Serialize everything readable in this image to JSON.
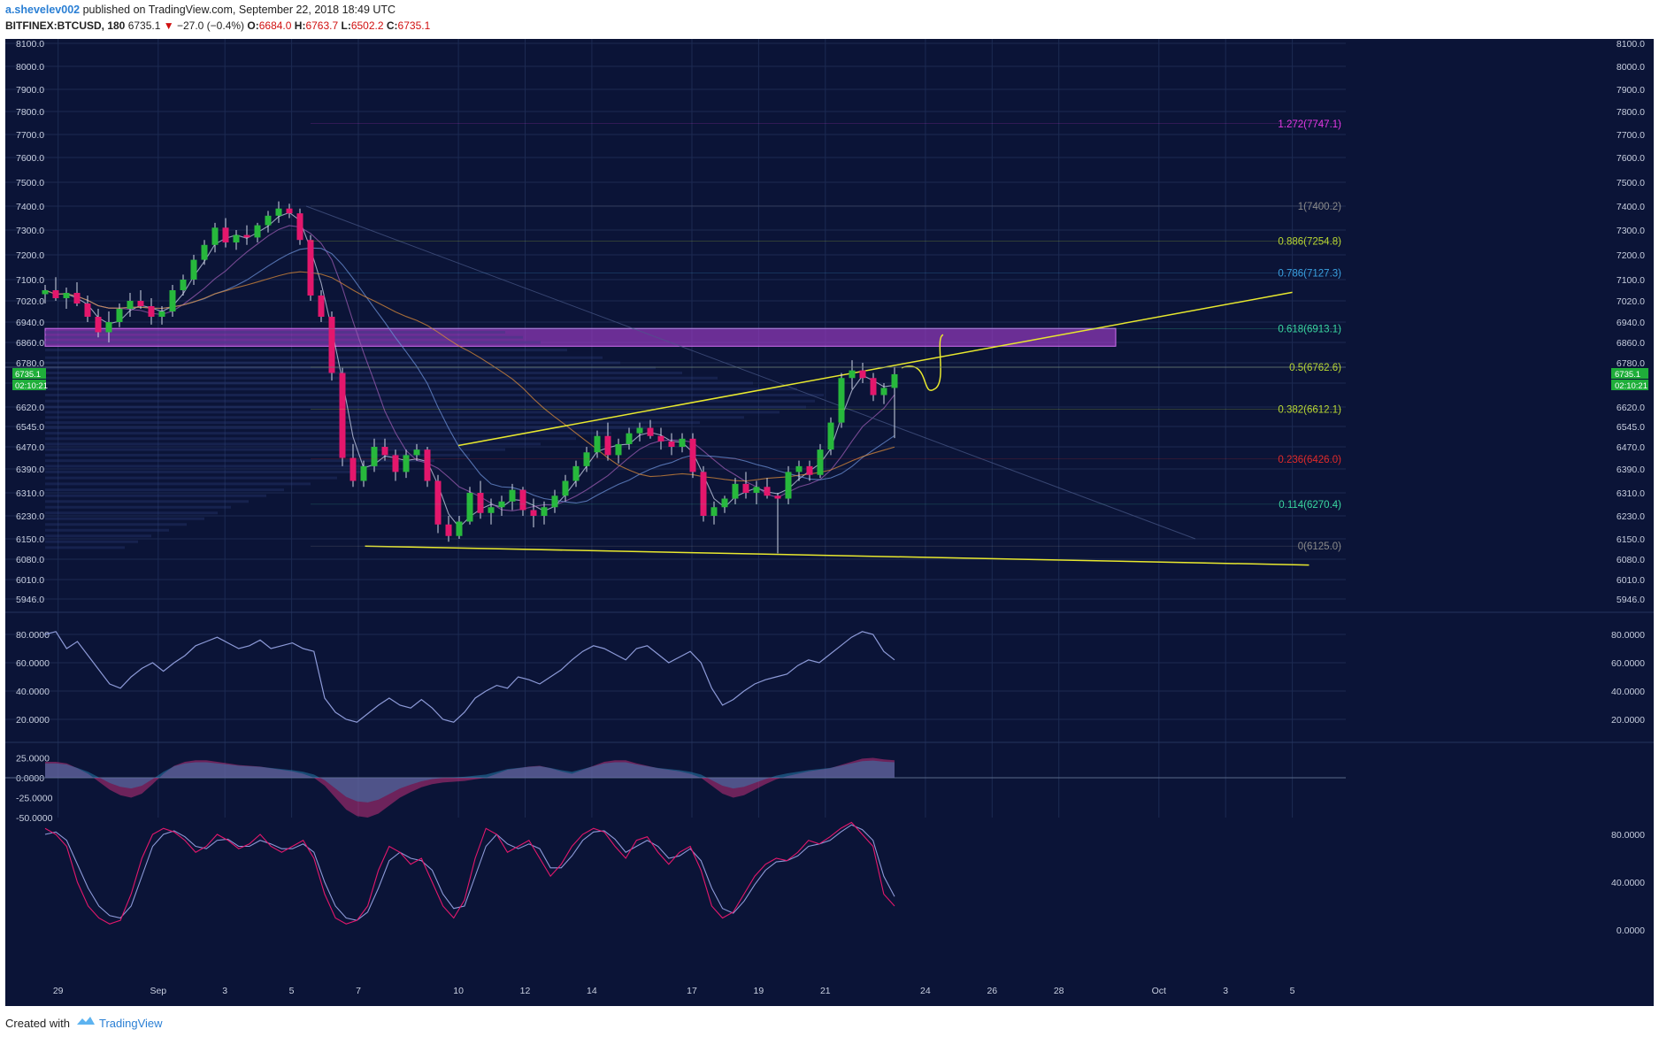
{
  "header": {
    "author": "a.shevelev002",
    "published_text": "published on TradingView.com, September 22, 2018 18:49 UTC",
    "symbol": "BITFINEX:BTCUSD, 180",
    "last": "6735.1",
    "change_arrow": "▼",
    "change": "−27.0 (−0.4%)",
    "o_label": "O:",
    "o": "6684.0",
    "h_label": "H:",
    "h": "6763.7",
    "l_label": "L:",
    "l": "6502.2",
    "c_label": "C:",
    "c": "6735.1"
  },
  "footer": {
    "created_with": "Created with",
    "brand": "TradingView"
  },
  "colors": {
    "background": "#0b1437",
    "up": "#27b83c",
    "down": "#e3176c",
    "trendline": "#e8e82e",
    "zone": "#a03cc8",
    "rsi": "#8d9ad8",
    "stoch_k": "#e3176c",
    "stoch_d": "#8d9ad8"
  },
  "chart_data": {
    "type": "candlestick",
    "price_axis": {
      "ticks": [
        "8100.0",
        "8000.0",
        "7900.0",
        "7800.0",
        "7700.0",
        "7600.0",
        "7500.0",
        "7400.0",
        "7300.0",
        "7200.0",
        "7100.0",
        "7020.0",
        "6940.0",
        "6860.0",
        "6780.0",
        "6700.0",
        "6620.0",
        "6545.0",
        "6470.0",
        "6390.0",
        "6310.0",
        "6230.0",
        "6150.0",
        "6080.0",
        "6010.0",
        "5946.0"
      ],
      "last_price_tag": "6735.1",
      "countdown_tag": "02:10:21"
    },
    "time_axis": {
      "ticks": [
        "29",
        "Sep",
        "3",
        "5",
        "7",
        "10",
        "12",
        "14",
        "17",
        "19",
        "21",
        "24",
        "26",
        "28",
        "Oct",
        "3",
        "5"
      ]
    },
    "fibonacci": [
      {
        "label": "1.272(7747.1)",
        "level": 7747.1,
        "color": "#e639e6"
      },
      {
        "label": "1(7400.2)",
        "level": 7400.2,
        "color": "#8a8a8a"
      },
      {
        "label": "0.886(7254.8)",
        "level": 7254.8,
        "color": "#b8d633"
      },
      {
        "label": "0.786(7127.3)",
        "level": 7127.3,
        "color": "#3aa0e0"
      },
      {
        "label": "0.618(6913.1)",
        "level": 6913.1,
        "color": "#3ad6a0"
      },
      {
        "label": "0.5(6762.6)",
        "level": 6762.6,
        "color": "#b8d633"
      },
      {
        "label": "0.382(6612.1)",
        "level": 6612.1,
        "color": "#b8d633"
      },
      {
        "label": "0.236(6426.0)",
        "level": 6426.0,
        "color": "#e02a2a"
      },
      {
        "label": "0.114(6270.4)",
        "level": 6270.4,
        "color": "#3ad6a0"
      },
      {
        "label": "0(6125.0)",
        "level": 6125.0,
        "color": "#8a8a8a"
      }
    ],
    "resistance_zone": {
      "from": 6845,
      "to": 6915
    },
    "candles_ohlc": [
      [
        7045,
        7080,
        7010,
        7060
      ],
      [
        7060,
        7110,
        7020,
        7030
      ],
      [
        7030,
        7070,
        6990,
        7050
      ],
      [
        7050,
        7090,
        7000,
        7010
      ],
      [
        7010,
        7040,
        6940,
        6960
      ],
      [
        6960,
        6990,
        6880,
        6900
      ],
      [
        6900,
        6980,
        6860,
        6940
      ],
      [
        6940,
        7010,
        6920,
        6990
      ],
      [
        6990,
        7050,
        6960,
        7020
      ],
      [
        7020,
        7060,
        6990,
        7000
      ],
      [
        7000,
        7030,
        6930,
        6960
      ],
      [
        6960,
        7000,
        6930,
        6980
      ],
      [
        6980,
        7080,
        6960,
        7060
      ],
      [
        7060,
        7120,
        7040,
        7100
      ],
      [
        7100,
        7200,
        7080,
        7180
      ],
      [
        7180,
        7260,
        7160,
        7240
      ],
      [
        7240,
        7330,
        7210,
        7310
      ],
      [
        7310,
        7350,
        7230,
        7250
      ],
      [
        7250,
        7300,
        7220,
        7280
      ],
      [
        7280,
        7320,
        7240,
        7270
      ],
      [
        7270,
        7330,
        7250,
        7320
      ],
      [
        7320,
        7380,
        7290,
        7360
      ],
      [
        7360,
        7420,
        7330,
        7390
      ],
      [
        7390,
        7410,
        7350,
        7370
      ],
      [
        7370,
        7390,
        7240,
        7260
      ],
      [
        7260,
        7280,
        7020,
        7040
      ],
      [
        7040,
        7060,
        6940,
        6960
      ],
      [
        6960,
        6980,
        6710,
        6740
      ],
      [
        6740,
        6760,
        6400,
        6430
      ],
      [
        6430,
        6480,
        6330,
        6350
      ],
      [
        6350,
        6420,
        6330,
        6400
      ],
      [
        6400,
        6500,
        6380,
        6470
      ],
      [
        6470,
        6500,
        6420,
        6440
      ],
      [
        6440,
        6460,
        6350,
        6380
      ],
      [
        6380,
        6460,
        6360,
        6440
      ],
      [
        6440,
        6480,
        6420,
        6460
      ],
      [
        6460,
        6470,
        6330,
        6350
      ],
      [
        6350,
        6370,
        6170,
        6200
      ],
      [
        6200,
        6230,
        6140,
        6160
      ],
      [
        6160,
        6230,
        6150,
        6210
      ],
      [
        6210,
        6330,
        6200,
        6310
      ],
      [
        6310,
        6350,
        6220,
        6240
      ],
      [
        6240,
        6290,
        6200,
        6260
      ],
      [
        6260,
        6300,
        6230,
        6280
      ],
      [
        6280,
        6340,
        6250,
        6320
      ],
      [
        6320,
        6330,
        6230,
        6250
      ],
      [
        6250,
        6290,
        6190,
        6230
      ],
      [
        6230,
        6280,
        6200,
        6260
      ],
      [
        6260,
        6320,
        6240,
        6300
      ],
      [
        6300,
        6370,
        6280,
        6350
      ],
      [
        6350,
        6420,
        6330,
        6400
      ],
      [
        6400,
        6470,
        6380,
        6450
      ],
      [
        6450,
        6530,
        6430,
        6510
      ],
      [
        6510,
        6560,
        6420,
        6440
      ],
      [
        6440,
        6500,
        6410,
        6480
      ],
      [
        6480,
        6540,
        6460,
        6520
      ],
      [
        6520,
        6560,
        6490,
        6540
      ],
      [
        6540,
        6570,
        6500,
        6510
      ],
      [
        6510,
        6540,
        6460,
        6490
      ],
      [
        6490,
        6520,
        6440,
        6470
      ],
      [
        6470,
        6520,
        6450,
        6500
      ],
      [
        6500,
        6520,
        6360,
        6380
      ],
      [
        6380,
        6400,
        6210,
        6230
      ],
      [
        6230,
        6280,
        6200,
        6260
      ],
      [
        6260,
        6300,
        6240,
        6290
      ],
      [
        6290,
        6360,
        6270,
        6340
      ],
      [
        6340,
        6380,
        6290,
        6310
      ],
      [
        6310,
        6350,
        6270,
        6330
      ],
      [
        6330,
        6360,
        6290,
        6300
      ],
      [
        6300,
        6310,
        6100,
        6290
      ],
      [
        6290,
        6400,
        6270,
        6380
      ],
      [
        6380,
        6420,
        6350,
        6400
      ],
      [
        6400,
        6420,
        6350,
        6370
      ],
      [
        6370,
        6480,
        6360,
        6460
      ],
      [
        6460,
        6580,
        6440,
        6560
      ],
      [
        6560,
        6740,
        6540,
        6720
      ],
      [
        6720,
        6790,
        6680,
        6750
      ],
      [
        6750,
        6780,
        6700,
        6720
      ],
      [
        6720,
        6740,
        6640,
        6660
      ],
      [
        6660,
        6700,
        6630,
        6684
      ],
      [
        6684,
        6764,
        6502,
        6735
      ]
    ],
    "volume_profile": [
      [
        6900,
        520
      ],
      [
        6880,
        540
      ],
      [
        6860,
        560
      ],
      [
        6830,
        590
      ],
      [
        6800,
        630
      ],
      [
        6780,
        650
      ],
      [
        6760,
        690
      ],
      [
        6740,
        720
      ],
      [
        6720,
        760
      ],
      [
        6700,
        800
      ],
      [
        6680,
        850
      ],
      [
        6660,
        880
      ],
      [
        6640,
        870
      ],
      [
        6620,
        860
      ],
      [
        6600,
        830
      ],
      [
        6580,
        790
      ],
      [
        6560,
        740
      ],
      [
        6540,
        680
      ],
      [
        6520,
        640
      ],
      [
        6500,
        600
      ],
      [
        6480,
        560
      ],
      [
        6460,
        520
      ],
      [
        6440,
        480
      ],
      [
        6420,
        440
      ],
      [
        6400,
        400
      ],
      [
        6380,
        360
      ],
      [
        6360,
        330
      ],
      [
        6340,
        300
      ],
      [
        6320,
        270
      ],
      [
        6300,
        250
      ],
      [
        6280,
        230
      ],
      [
        6260,
        210
      ],
      [
        6240,
        195
      ],
      [
        6220,
        180
      ],
      [
        6200,
        160
      ],
      [
        6180,
        140
      ],
      [
        6160,
        120
      ],
      [
        6140,
        105
      ],
      [
        6120,
        90
      ]
    ],
    "trendlines": [
      {
        "name": "ascending-resistance",
        "from": [
          13,
          6475
        ],
        "to": [
          38,
          7052
        ]
      },
      {
        "name": "descending-support",
        "from": [
          10.2,
          6125
        ],
        "to": [
          38.5,
          6060
        ]
      }
    ],
    "rsi": {
      "ticks": [
        "80.0000",
        "60.0000",
        "40.0000",
        "20.0000"
      ],
      "values": [
        80,
        82,
        70,
        75,
        65,
        55,
        45,
        42,
        50,
        56,
        60,
        54,
        60,
        65,
        72,
        75,
        78,
        74,
        70,
        72,
        76,
        70,
        72,
        74,
        70,
        68,
        35,
        25,
        20,
        18,
        24,
        30,
        35,
        30,
        28,
        34,
        28,
        20,
        18,
        25,
        35,
        40,
        44,
        42,
        50,
        48,
        45,
        50,
        55,
        62,
        68,
        72,
        70,
        66,
        62,
        70,
        72,
        66,
        60,
        64,
        68,
        60,
        42,
        30,
        34,
        40,
        45,
        48,
        50,
        52,
        58,
        62,
        60,
        66,
        72,
        78,
        82,
        80,
        68,
        62
      ]
    },
    "stoch_rsi": {
      "left_ticks": [
        "25.0000",
        "0.0000",
        "-25.0000",
        "-50.0000"
      ],
      "right_ticks": [
        "80.0000",
        "40.0000",
        "0.0000"
      ],
      "k": [
        85,
        80,
        70,
        40,
        20,
        10,
        5,
        8,
        30,
        60,
        80,
        85,
        82,
        75,
        65,
        70,
        80,
        75,
        68,
        72,
        80,
        70,
        65,
        70,
        75,
        60,
        30,
        10,
        5,
        8,
        20,
        50,
        70,
        65,
        55,
        60,
        40,
        20,
        10,
        25,
        60,
        85,
        80,
        65,
        70,
        75,
        60,
        45,
        55,
        70,
        80,
        85,
        82,
        70,
        60,
        75,
        78,
        65,
        55,
        65,
        70,
        50,
        20,
        10,
        15,
        30,
        45,
        55,
        60,
        58,
        65,
        75,
        72,
        78,
        85,
        90,
        80,
        70,
        30,
        20
      ],
      "d": [
        80,
        82,
        75,
        55,
        35,
        20,
        12,
        10,
        20,
        45,
        70,
        80,
        83,
        78,
        70,
        68,
        75,
        76,
        70,
        70,
        75,
        72,
        68,
        68,
        72,
        65,
        40,
        20,
        10,
        8,
        15,
        35,
        58,
        65,
        60,
        58,
        50,
        30,
        18,
        20,
        45,
        70,
        80,
        72,
        68,
        72,
        68,
        52,
        52,
        62,
        75,
        82,
        83,
        76,
        65,
        70,
        75,
        70,
        60,
        62,
        68,
        58,
        35,
        18,
        14,
        24,
        38,
        50,
        57,
        58,
        62,
        70,
        72,
        75,
        82,
        88,
        84,
        75,
        45,
        28
      ],
      "hist": [
        20,
        20,
        18,
        12,
        5,
        -5,
        -15,
        -22,
        -25,
        -20,
        -8,
        5,
        15,
        20,
        22,
        22,
        20,
        18,
        16,
        15,
        14,
        12,
        10,
        8,
        5,
        0,
        -10,
        -25,
        -40,
        -48,
        -50,
        -45,
        -35,
        -25,
        -18,
        -12,
        -8,
        -6,
        -5,
        -4,
        -2,
        0,
        5,
        10,
        12,
        14,
        15,
        12,
        8,
        5,
        10,
        15,
        20,
        22,
        22,
        18,
        15,
        12,
        10,
        8,
        5,
        0,
        -10,
        -20,
        -25,
        -22,
        -15,
        -8,
        -2,
        2,
        5,
        8,
        10,
        12,
        16,
        20,
        24,
        25,
        23,
        22
      ]
    }
  }
}
